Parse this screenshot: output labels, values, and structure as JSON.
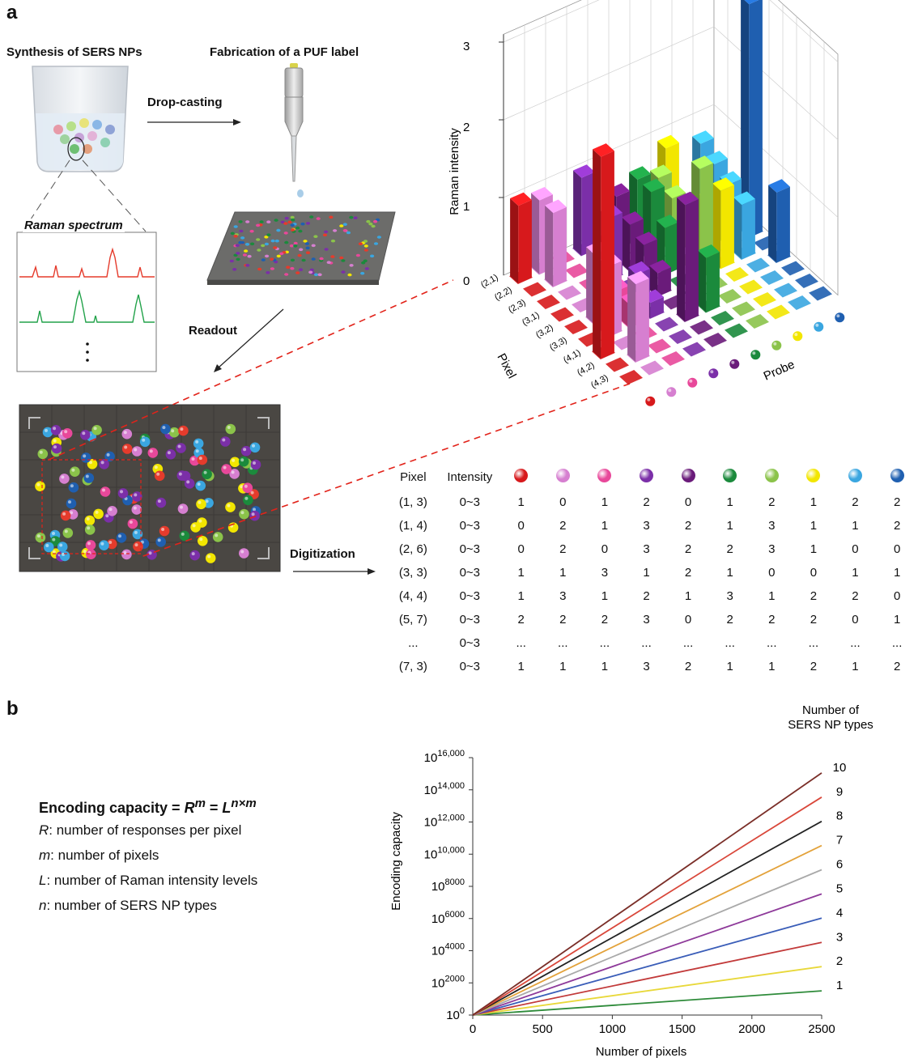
{
  "panel_a": {
    "letter": "a",
    "synthesis_label": "Synthesis of SERS NPs",
    "fabrication_label": "Fabrication of a PUF label",
    "drop_casting_label": "Drop-casting",
    "raman_spectrum_label": "Raman spectrum",
    "readout_label": "Readout",
    "digitization_label": "Digitization",
    "bar3d": {
      "z_label": "Raman intensity",
      "z_ticks": [
        "0",
        "1",
        "2",
        "3"
      ],
      "pixel_axis_label": "Pixel",
      "probe_axis_label": "Probe",
      "pixel_ticks": [
        "(2,1)",
        "(2,2)",
        "(2,3)",
        "(3,1)",
        "(3,2)",
        "(3,3)",
        "(4,1)",
        "(4,2)",
        "(4,3)"
      ]
    },
    "table": {
      "header_pixel": "Pixel",
      "header_intensity": "Intensity",
      "probe_colors": [
        "#d7191c",
        "#d67fd0",
        "#e8489a",
        "#7b2fa8",
        "#6a1b7a",
        "#1b8a3c",
        "#8bc34a",
        "#f2e600",
        "#3aa6e0",
        "#1f5fb0"
      ],
      "rows": [
        {
          "pixel": "(1, 3)",
          "intensity": "0~3",
          "values": [
            "1",
            "0",
            "1",
            "2",
            "0",
            "1",
            "2",
            "1",
            "2",
            "2"
          ]
        },
        {
          "pixel": "(1, 4)",
          "intensity": "0~3",
          "values": [
            "0",
            "2",
            "1",
            "3",
            "2",
            "1",
            "3",
            "1",
            "1",
            "2"
          ]
        },
        {
          "pixel": "(2, 6)",
          "intensity": "0~3",
          "values": [
            "0",
            "2",
            "0",
            "3",
            "2",
            "2",
            "3",
            "1",
            "0",
            "0"
          ]
        },
        {
          "pixel": "(3, 3)",
          "intensity": "0~3",
          "values": [
            "1",
            "1",
            "3",
            "1",
            "2",
            "1",
            "0",
            "0",
            "1",
            "1"
          ]
        },
        {
          "pixel": "(4, 4)",
          "intensity": "0~3",
          "values": [
            "1",
            "3",
            "1",
            "2",
            "1",
            "3",
            "1",
            "2",
            "2",
            "0"
          ]
        },
        {
          "pixel": "(5, 7)",
          "intensity": "0~3",
          "values": [
            "2",
            "2",
            "2",
            "3",
            "0",
            "2",
            "2",
            "2",
            "0",
            "1"
          ]
        },
        {
          "pixel": "...",
          "intensity": "0~3",
          "values": [
            "...",
            "...",
            "...",
            "...",
            "...",
            "...",
            "...",
            "...",
            "...",
            "..."
          ]
        },
        {
          "pixel": "(7, 3)",
          "intensity": "0~3",
          "values": [
            "1",
            "1",
            "1",
            "3",
            "2",
            "1",
            "1",
            "2",
            "1",
            "2"
          ]
        }
      ]
    }
  },
  "panel_b": {
    "letter": "b",
    "formula_title": "Encoding capacity = ",
    "formula_r": "R",
    "formula_m": "m",
    "formula_eq": " = ",
    "formula_l": "L",
    "formula_nxm": "n×m",
    "definitions": [
      {
        "sym": "R",
        "text": ": number of responses per pixel"
      },
      {
        "sym": "m",
        "text": ": number of pixels"
      },
      {
        "sym": "L",
        "text": ": number of Raman intensity levels"
      },
      {
        "sym": "n",
        "text": ": number of SERS NP types"
      }
    ]
  },
  "chart_data": {
    "type": "line",
    "title": "",
    "xlabel": "Number of pixels",
    "ylabel": "Encoding capacity",
    "legend_title_line1": "Number of",
    "legend_title_line2": "SERS NP types",
    "x_ticks": [
      "0",
      "500",
      "1000",
      "1500",
      "2000",
      "2500"
    ],
    "y_ticks": [
      {
        "base": "10",
        "exp": "0"
      },
      {
        "base": "10",
        "exp": "2000"
      },
      {
        "base": "10",
        "exp": "4000"
      },
      {
        "base": "10",
        "exp": "6000"
      },
      {
        "base": "10",
        "exp": "8000"
      },
      {
        "base": "10",
        "exp": "10,000"
      },
      {
        "base": "10",
        "exp": "12,000"
      },
      {
        "base": "10",
        "exp": "14,000"
      },
      {
        "base": "10",
        "exp": "16,000"
      }
    ],
    "xlim": [
      0,
      2500
    ],
    "ylim_log10": [
      0,
      16000
    ],
    "x": [
      0,
      2500
    ],
    "series": [
      {
        "name": "1",
        "color": "#2e8b3a",
        "log10_values": [
          0,
          1505
        ]
      },
      {
        "name": "2",
        "color": "#e8d83a",
        "log10_values": [
          0,
          3010
        ]
      },
      {
        "name": "3",
        "color": "#c23a3a",
        "log10_values": [
          0,
          4515
        ]
      },
      {
        "name": "4",
        "color": "#3a5db8",
        "log10_values": [
          0,
          6021
        ]
      },
      {
        "name": "5",
        "color": "#8e3a9a",
        "log10_values": [
          0,
          7526
        ]
      },
      {
        "name": "6",
        "color": "#a9a9a9",
        "log10_values": [
          0,
          9031
        ]
      },
      {
        "name": "7",
        "color": "#e3a23a",
        "log10_values": [
          0,
          10536
        ]
      },
      {
        "name": "8",
        "color": "#222222",
        "log10_values": [
          0,
          12041
        ]
      },
      {
        "name": "9",
        "color": "#d9473a",
        "log10_values": [
          0,
          13546
        ]
      },
      {
        "name": "10",
        "color": "#7a2e28",
        "log10_values": [
          0,
          15051
        ]
      }
    ]
  }
}
